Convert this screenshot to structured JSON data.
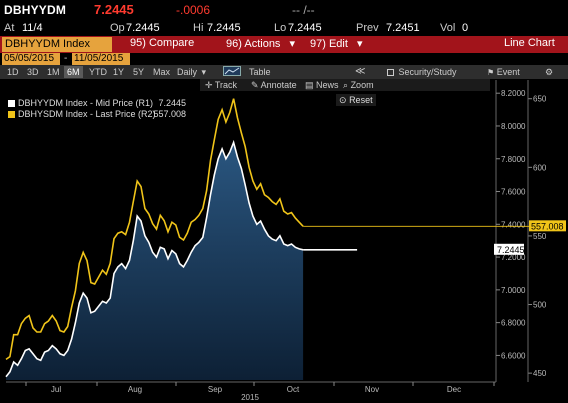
{
  "header": {
    "ticker": "DBHYYDM",
    "last_price": "7.2445",
    "change": "-.0006",
    "dashes": "-- /--",
    "at_label": "At",
    "at_value": "11/4",
    "op_label": "Op",
    "op_value": "7.2445",
    "hi_label": "Hi",
    "hi_value": "7.2445",
    "lo_label": "Lo",
    "lo_value": "7.2445",
    "prev_label": "Prev",
    "prev_value": "7.2451",
    "vol_label": "Vol",
    "vol_value": "0"
  },
  "menu": {
    "index_tab": "DBHYYDM Index",
    "compare_num": "95)",
    "compare": "Compare",
    "actions_num": "96)",
    "actions": "Actions",
    "edit_num": "97)",
    "edit": "Edit",
    "chart_type": "Line Chart",
    "arrow": "▾"
  },
  "dates": {
    "start": "05/05/2015",
    "sep": "-",
    "end": "11/05/2015"
  },
  "toolbar": {
    "periods": [
      "1D",
      "3D",
      "1M",
      "6M",
      "YTD",
      "1Y",
      "5Y",
      "Max"
    ],
    "selected_period": "6M",
    "frequency": "Daily",
    "table": "Table",
    "collapse": "≪",
    "security_study": "Security/Study",
    "event": "Event",
    "gear": "⚙"
  },
  "toolbar2": {
    "track": "Track",
    "annotate": "Annotate",
    "news": "News",
    "zoom": "Zoom",
    "reset": "Reset"
  },
  "legend": {
    "mid": "DBHYYDM Index - Mid Price (R1)",
    "mid_value": "7.2445",
    "last": "DBHYSDM Index - Last Price (R2)",
    "last_value": "557.008"
  },
  "colors": {
    "red": "#a2141b",
    "orange": "#e6a33d",
    "yellow": "#f0c419",
    "white": "#ffffff",
    "fill": "#1d3d5e"
  },
  "chart_data": {
    "type": "line",
    "x_labels": [
      "Jul",
      "Aug",
      "Sep",
      "Oct",
      "Nov",
      "Dec"
    ],
    "x_year": "2015",
    "y_left_ticks": [
      "8.2000",
      "8.0000",
      "7.8000",
      "7.6000",
      "7.4000",
      "7.2000",
      "7.0000",
      "6.8000",
      "6.6000"
    ],
    "y_right_ticks": [
      "650",
      "600",
      "550",
      "500",
      "450"
    ],
    "y_left_range": [
      6.45,
      8.25
    ],
    "y_right_range": [
      445,
      660
    ],
    "series": [
      {
        "name": "DBHYYDM Index - Mid Price (R1)",
        "axis": "left",
        "color": "#ffffff",
        "last_label": "7.2445",
        "points": [
          [
            0,
            6.47
          ],
          [
            2,
            6.5
          ],
          [
            4,
            6.56
          ],
          [
            6,
            6.54
          ],
          [
            8,
            6.58
          ],
          [
            10,
            6.63
          ],
          [
            12,
            6.64
          ],
          [
            14,
            6.61
          ],
          [
            16,
            6.58
          ],
          [
            18,
            6.57
          ],
          [
            20,
            6.62
          ],
          [
            22,
            6.63
          ],
          [
            24,
            6.66
          ],
          [
            26,
            6.64
          ],
          [
            28,
            6.61
          ],
          [
            30,
            6.6
          ],
          [
            32,
            6.63
          ],
          [
            34,
            6.7
          ],
          [
            36,
            6.8
          ],
          [
            38,
            6.92
          ],
          [
            40,
            6.98
          ],
          [
            42,
            6.95
          ],
          [
            44,
            6.86
          ],
          [
            46,
            6.87
          ],
          [
            48,
            6.9
          ],
          [
            50,
            6.93
          ],
          [
            52,
            6.92
          ],
          [
            54,
            6.95
          ],
          [
            56,
            7.1
          ],
          [
            58,
            7.14
          ],
          [
            60,
            7.16
          ],
          [
            62,
            7.13
          ],
          [
            64,
            7.18
          ],
          [
            66,
            7.3
          ],
          [
            68,
            7.45
          ],
          [
            70,
            7.42
          ],
          [
            72,
            7.33
          ],
          [
            74,
            7.29
          ],
          [
            76,
            7.23
          ],
          [
            78,
            7.2
          ],
          [
            80,
            7.26
          ],
          [
            82,
            7.25
          ],
          [
            84,
            7.19
          ],
          [
            86,
            7.24
          ],
          [
            88,
            7.22
          ],
          [
            90,
            7.16
          ],
          [
            92,
            7.14
          ],
          [
            94,
            7.18
          ],
          [
            96,
            7.23
          ],
          [
            98,
            7.27
          ],
          [
            100,
            7.29
          ],
          [
            102,
            7.32
          ],
          [
            104,
            7.44
          ],
          [
            106,
            7.58
          ],
          [
            108,
            7.7
          ],
          [
            110,
            7.8
          ],
          [
            112,
            7.86
          ],
          [
            114,
            7.8
          ],
          [
            116,
            7.84
          ],
          [
            118,
            7.9
          ],
          [
            120,
            7.81
          ],
          [
            122,
            7.74
          ],
          [
            124,
            7.64
          ],
          [
            126,
            7.53
          ],
          [
            128,
            7.45
          ],
          [
            130,
            7.4
          ],
          [
            132,
            7.42
          ],
          [
            134,
            7.37
          ],
          [
            136,
            7.33
          ],
          [
            138,
            7.31
          ],
          [
            140,
            7.3
          ],
          [
            142,
            7.33
          ],
          [
            144,
            7.28
          ],
          [
            146,
            7.27
          ],
          [
            148,
            7.28
          ],
          [
            150,
            7.26
          ],
          [
            152,
            7.25
          ],
          [
            154,
            7.2445
          ]
        ]
      },
      {
        "name": "DBHYSDM Index - Last Price (R2)",
        "axis": "right",
        "color": "#f0c419",
        "last_label": "557.008",
        "points": [
          [
            0,
            460
          ],
          [
            2,
            462
          ],
          [
            4,
            478
          ],
          [
            6,
            478
          ],
          [
            8,
            486
          ],
          [
            10,
            490
          ],
          [
            12,
            492
          ],
          [
            14,
            483
          ],
          [
            16,
            480
          ],
          [
            18,
            480
          ],
          [
            20,
            486
          ],
          [
            22,
            488
          ],
          [
            24,
            492
          ],
          [
            26,
            488
          ],
          [
            28,
            481
          ],
          [
            30,
            480
          ],
          [
            32,
            484
          ],
          [
            34,
            498
          ],
          [
            36,
            510
          ],
          [
            38,
            530
          ],
          [
            40,
            538
          ],
          [
            42,
            532
          ],
          [
            44,
            516
          ],
          [
            46,
            515
          ],
          [
            48,
            520
          ],
          [
            50,
            525
          ],
          [
            52,
            522
          ],
          [
            54,
            530
          ],
          [
            56,
            548
          ],
          [
            58,
            552
          ],
          [
            60,
            553
          ],
          [
            62,
            551
          ],
          [
            64,
            560
          ],
          [
            66,
            575
          ],
          [
            68,
            590
          ],
          [
            70,
            586
          ],
          [
            72,
            570
          ],
          [
            74,
            566
          ],
          [
            76,
            559
          ],
          [
            78,
            555
          ],
          [
            80,
            565
          ],
          [
            82,
            561
          ],
          [
            84,
            553
          ],
          [
            86,
            560
          ],
          [
            88,
            558
          ],
          [
            90,
            549
          ],
          [
            92,
            547
          ],
          [
            94,
            552
          ],
          [
            96,
            560
          ],
          [
            98,
            562
          ],
          [
            100,
            565
          ],
          [
            102,
            570
          ],
          [
            104,
            583
          ],
          [
            106,
            605
          ],
          [
            108,
            620
          ],
          [
            110,
            635
          ],
          [
            112,
            642
          ],
          [
            114,
            633
          ],
          [
            116,
            640
          ],
          [
            118,
            650
          ],
          [
            120,
            636
          ],
          [
            122,
            625
          ],
          [
            124,
            615
          ],
          [
            126,
            600
          ],
          [
            128,
            590
          ],
          [
            130,
            584
          ],
          [
            132,
            588
          ],
          [
            134,
            580
          ],
          [
            136,
            578
          ],
          [
            138,
            575
          ],
          [
            140,
            573
          ],
          [
            142,
            577
          ],
          [
            144,
            568
          ],
          [
            146,
            566
          ],
          [
            148,
            567
          ],
          [
            150,
            563
          ],
          [
            152,
            560
          ],
          [
            154,
            557
          ]
        ]
      }
    ],
    "flat_extension": {
      "series": "DBHYYDM Index - Mid Price (R1)",
      "value": 7.2445,
      "to_x": 182
    },
    "grid": false,
    "legend_position": "top-left"
  }
}
